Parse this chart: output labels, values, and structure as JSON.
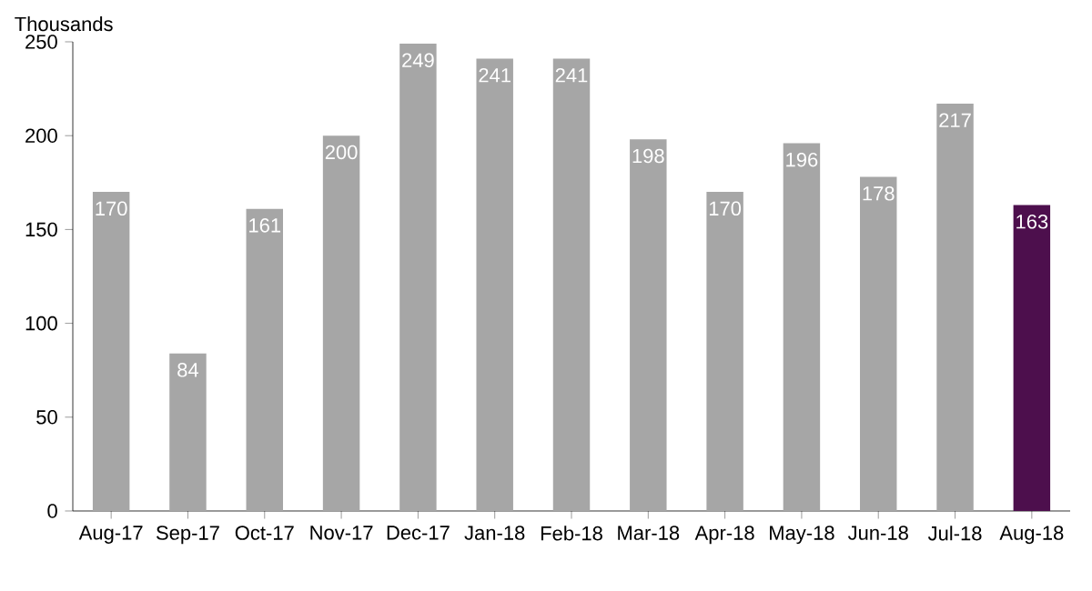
{
  "chart_data": {
    "type": "bar",
    "ylabel": "Thousands",
    "categories": [
      "Aug-17",
      "Sep-17",
      "Oct-17",
      "Nov-17",
      "Dec-17",
      "Jan-18",
      "Feb-18",
      "Mar-18",
      "Apr-18",
      "May-18",
      "Jun-18",
      "Jul-18",
      "Aug-18"
    ],
    "values": [
      170,
      84,
      161,
      200,
      249,
      241,
      241,
      198,
      170,
      196,
      178,
      217,
      163
    ],
    "colors": [
      "#a6a6a6",
      "#a6a6a6",
      "#a6a6a6",
      "#a6a6a6",
      "#a6a6a6",
      "#a6a6a6",
      "#a6a6a6",
      "#a6a6a6",
      "#a6a6a6",
      "#a6a6a6",
      "#a6a6a6",
      "#a6a6a6",
      "#4d0f4d"
    ],
    "ylim": [
      0,
      250
    ],
    "yticks": [
      0,
      50,
      100,
      150,
      200,
      250
    ],
    "data_labels": true,
    "grid": false
  }
}
